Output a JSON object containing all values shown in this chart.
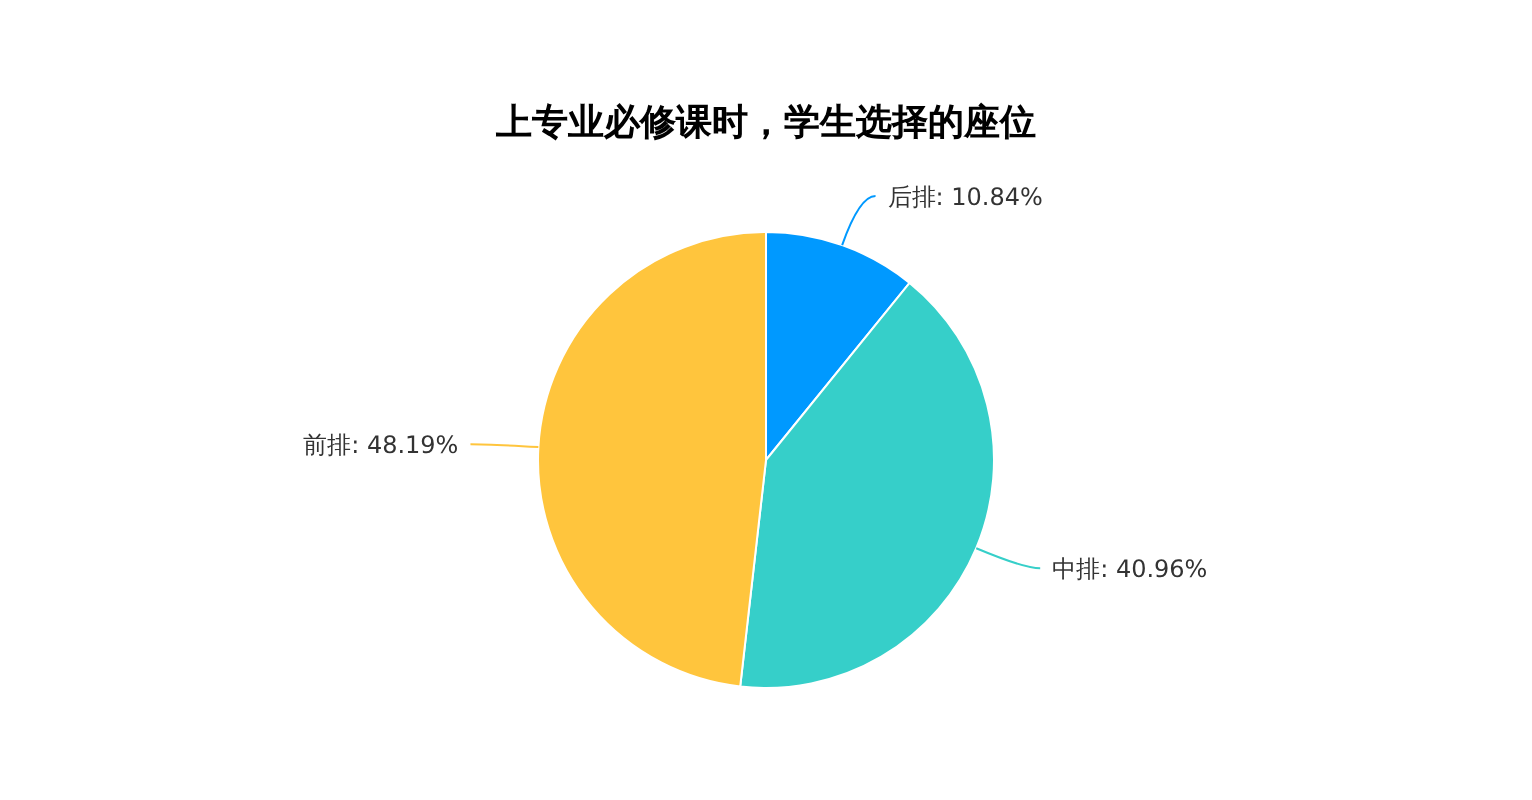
{
  "chart_data": {
    "type": "pie",
    "title": "上专业必修课时，学生选择的座位",
    "categories": [
      "后排",
      "中排",
      "前排"
    ],
    "values": [
      10.84,
      40.96,
      48.19
    ],
    "colors": [
      "#0099ff",
      "#36cfc9",
      "#ffc53d"
    ],
    "value_labels": [
      "10.84%",
      "40.96%",
      "48.19%"
    ]
  }
}
